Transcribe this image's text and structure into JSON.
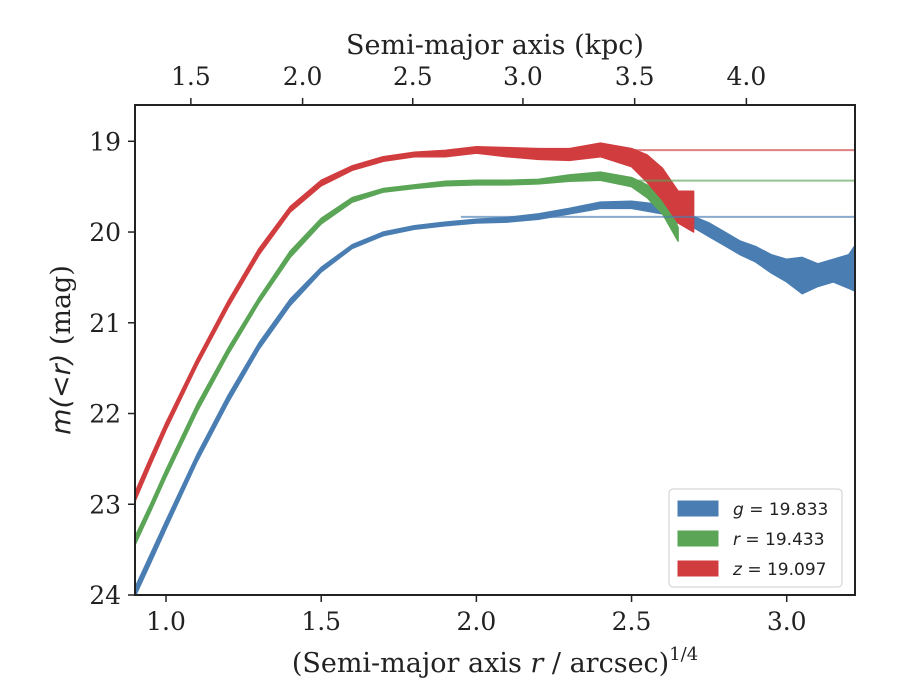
{
  "chart_data": {
    "type": "area",
    "xlabel_prefix": "(Semi-major axis ",
    "xlabel_var": "r",
    "xlabel_suffix": " / arcsec)",
    "xlabel_sup": "1/4",
    "top_xlabel": "Semi-major axis (kpc)",
    "ylabel_pre": "m(<r)",
    "ylabel_post": " (mag)",
    "xlim": [
      0.9,
      3.22
    ],
    "ylim": [
      24,
      18.6
    ],
    "y_inverted": true,
    "x_ticks": [
      "1.0",
      "1.5",
      "2.0",
      "2.5",
      "3.0"
    ],
    "y_ticks": [
      "19",
      "20",
      "21",
      "22",
      "23",
      "24"
    ],
    "top_ticks": [
      "1.5",
      "2.0",
      "2.5",
      "3.0",
      "3.5",
      "4.0"
    ],
    "top_tick_positions_bottom_units": [
      1.08,
      1.44,
      1.795,
      2.15,
      2.51,
      2.87
    ],
    "legend_position": "lower-right",
    "series": [
      {
        "name": "g",
        "legend_var": "g",
        "legend_value": "= 19.833",
        "color": "#4a7eb3",
        "asymptote": 19.833,
        "x": [
          0.9,
          0.95,
          1.0,
          1.1,
          1.2,
          1.3,
          1.4,
          1.5,
          1.6,
          1.7,
          1.8,
          1.9,
          2.0,
          2.1,
          2.2,
          2.3,
          2.4,
          2.5,
          2.6,
          2.65,
          2.7,
          2.75,
          2.8,
          2.85,
          2.9,
          2.95,
          3.0,
          3.05,
          3.1,
          3.15,
          3.2,
          3.22
        ],
        "lower": [
          23.92,
          23.55,
          23.18,
          22.45,
          21.8,
          21.22,
          20.74,
          20.39,
          20.14,
          20.0,
          19.93,
          19.89,
          19.86,
          19.84,
          19.8,
          19.74,
          19.67,
          19.66,
          19.7,
          19.75,
          19.83,
          19.9,
          20.0,
          20.1,
          20.16,
          20.25,
          20.3,
          20.28,
          20.35,
          20.3,
          20.25,
          20.15
        ],
        "upper": [
          24.02,
          23.65,
          23.27,
          22.53,
          21.88,
          21.29,
          20.81,
          20.44,
          20.18,
          20.04,
          19.97,
          19.93,
          19.9,
          19.89,
          19.86,
          19.8,
          19.74,
          19.74,
          19.8,
          19.9,
          19.95,
          20.05,
          20.15,
          20.25,
          20.33,
          20.45,
          20.55,
          20.68,
          20.6,
          20.55,
          20.62,
          20.65
        ]
      },
      {
        "name": "r",
        "legend_var": "r",
        "legend_value": "= 19.433",
        "color": "#5aa556",
        "asymptote": 19.433,
        "x": [
          0.9,
          0.95,
          1.0,
          1.1,
          1.2,
          1.3,
          1.4,
          1.5,
          1.6,
          1.7,
          1.8,
          1.9,
          2.0,
          2.1,
          2.2,
          2.3,
          2.4,
          2.5,
          2.55,
          2.6,
          2.63,
          2.65
        ],
        "lower": [
          23.36,
          23.0,
          22.62,
          21.9,
          21.28,
          20.72,
          20.21,
          19.85,
          19.62,
          19.52,
          19.48,
          19.44,
          19.43,
          19.43,
          19.42,
          19.37,
          19.34,
          19.4,
          19.48,
          19.62,
          19.8,
          19.95
        ],
        "upper": [
          23.45,
          23.08,
          22.7,
          21.98,
          21.35,
          20.78,
          20.28,
          19.91,
          19.67,
          19.56,
          19.52,
          19.49,
          19.48,
          19.48,
          19.47,
          19.44,
          19.43,
          19.5,
          19.62,
          19.8,
          19.98,
          20.1
        ]
      },
      {
        "name": "z",
        "legend_var": "z",
        "legend_value": "= 19.097",
        "color": "#d13d3f",
        "asymptote": 19.097,
        "x": [
          0.9,
          0.95,
          1.0,
          1.1,
          1.2,
          1.3,
          1.4,
          1.5,
          1.6,
          1.7,
          1.8,
          1.9,
          2.0,
          2.1,
          2.2,
          2.3,
          2.4,
          2.5,
          2.55,
          2.6,
          2.65,
          2.7
        ],
        "lower": [
          22.87,
          22.48,
          22.1,
          21.4,
          20.76,
          20.18,
          19.72,
          19.43,
          19.27,
          19.17,
          19.12,
          19.1,
          19.06,
          19.07,
          19.08,
          19.08,
          19.02,
          19.08,
          19.15,
          19.3,
          19.55,
          19.55
        ],
        "upper": [
          22.97,
          22.57,
          22.18,
          21.47,
          20.83,
          20.25,
          19.78,
          19.49,
          19.32,
          19.22,
          19.17,
          19.17,
          19.13,
          19.17,
          19.2,
          19.21,
          19.17,
          19.28,
          19.45,
          19.65,
          19.9,
          20.0
        ]
      }
    ]
  }
}
